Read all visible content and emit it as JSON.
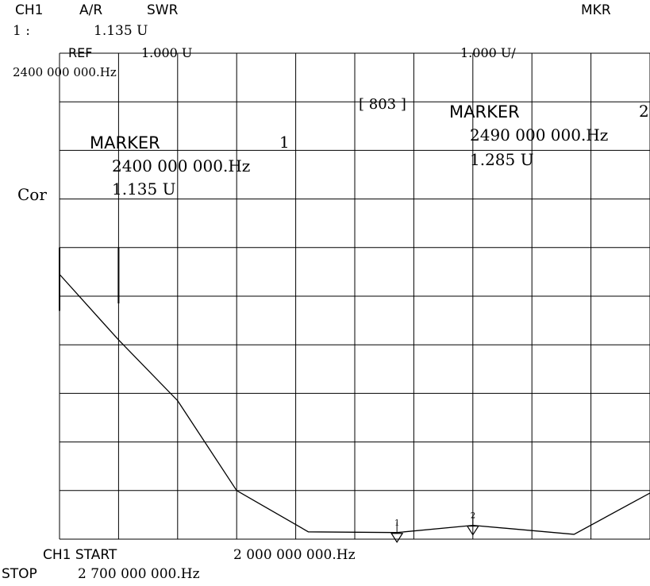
{
  "header": {
    "channel": "CH1",
    "measurement": "A/R",
    "format": "SWR",
    "menu": "MKR",
    "marker_readout_label": "1 :",
    "marker_readout_value": "1.135 U"
  },
  "scale": {
    "ref_label": "REF",
    "ref_value": "1.000 U",
    "per_div": "1.000 U/",
    "ref_freq": "2400 000  000.Hz",
    "points_count": "[ 803 ]",
    "correction": "Cor"
  },
  "markers": [
    {
      "label": "MARKER",
      "number": "1",
      "freq_text": "2400  000  000.Hz",
      "value_text": "1.135 U"
    },
    {
      "label": "MARKER",
      "number": "2",
      "freq_text": "2490  000  000.Hz",
      "value_text": "1.285 U"
    }
  ],
  "footer": {
    "start_label": "CH1  START",
    "start_value": "2  000 000 000.Hz",
    "stop_label": "STOP",
    "stop_value": "2 700 000 000.Hz"
  },
  "chart_data": {
    "type": "line",
    "xlabel": "",
    "ylabel": "",
    "x_unit": "MHz",
    "xlim": [
      2000,
      2700
    ],
    "ylim": [
      1.0,
      11.0
    ],
    "grid": true,
    "series": [
      {
        "x": [
          2000,
          2070,
          2140,
          2210,
          2295,
          2400,
          2490,
          2610,
          2700
        ],
        "y": [
          6.45,
          5.1,
          3.85,
          2.0,
          1.15,
          1.135,
          1.285,
          1.1,
          1.95
        ]
      }
    ],
    "marker_points": [
      {
        "number": "1",
        "x": 2400,
        "y": 1.135
      },
      {
        "number": "2",
        "x": 2490,
        "y": 1.285
      }
    ]
  }
}
